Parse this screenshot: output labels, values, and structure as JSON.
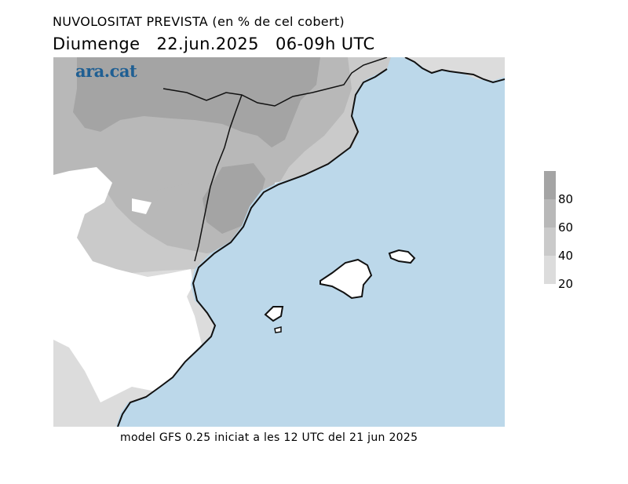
{
  "header": {
    "title": "NUVOLOSITAT PREVISTA (en % de cel cobert)",
    "day": "Diumenge",
    "date": "22.jun.2025",
    "time_range": "06-09h UTC"
  },
  "logo": {
    "text": "ara.cat",
    "color": "#1f5f93"
  },
  "footer": {
    "model_note": "model GFS 0.25 iniciat a les 12 UTC del 21 jun 2025"
  },
  "legend": {
    "levels": [
      {
        "label": "80",
        "color": "#a4a4a4"
      },
      {
        "label": "60",
        "color": "#b8b8b8"
      },
      {
        "label": "40",
        "color": "#cacaca"
      },
      {
        "label": "20",
        "color": "#dcdcdc"
      }
    ]
  },
  "colors": {
    "sea": "#bcd8ea",
    "clear": "#ffffff",
    "cover_20_40": "#dcdcdc",
    "cover_40_60": "#cacaca",
    "cover_60_80": "#b8b8b8",
    "cover_80_100": "#a4a4a4",
    "coastline": "#111111"
  }
}
